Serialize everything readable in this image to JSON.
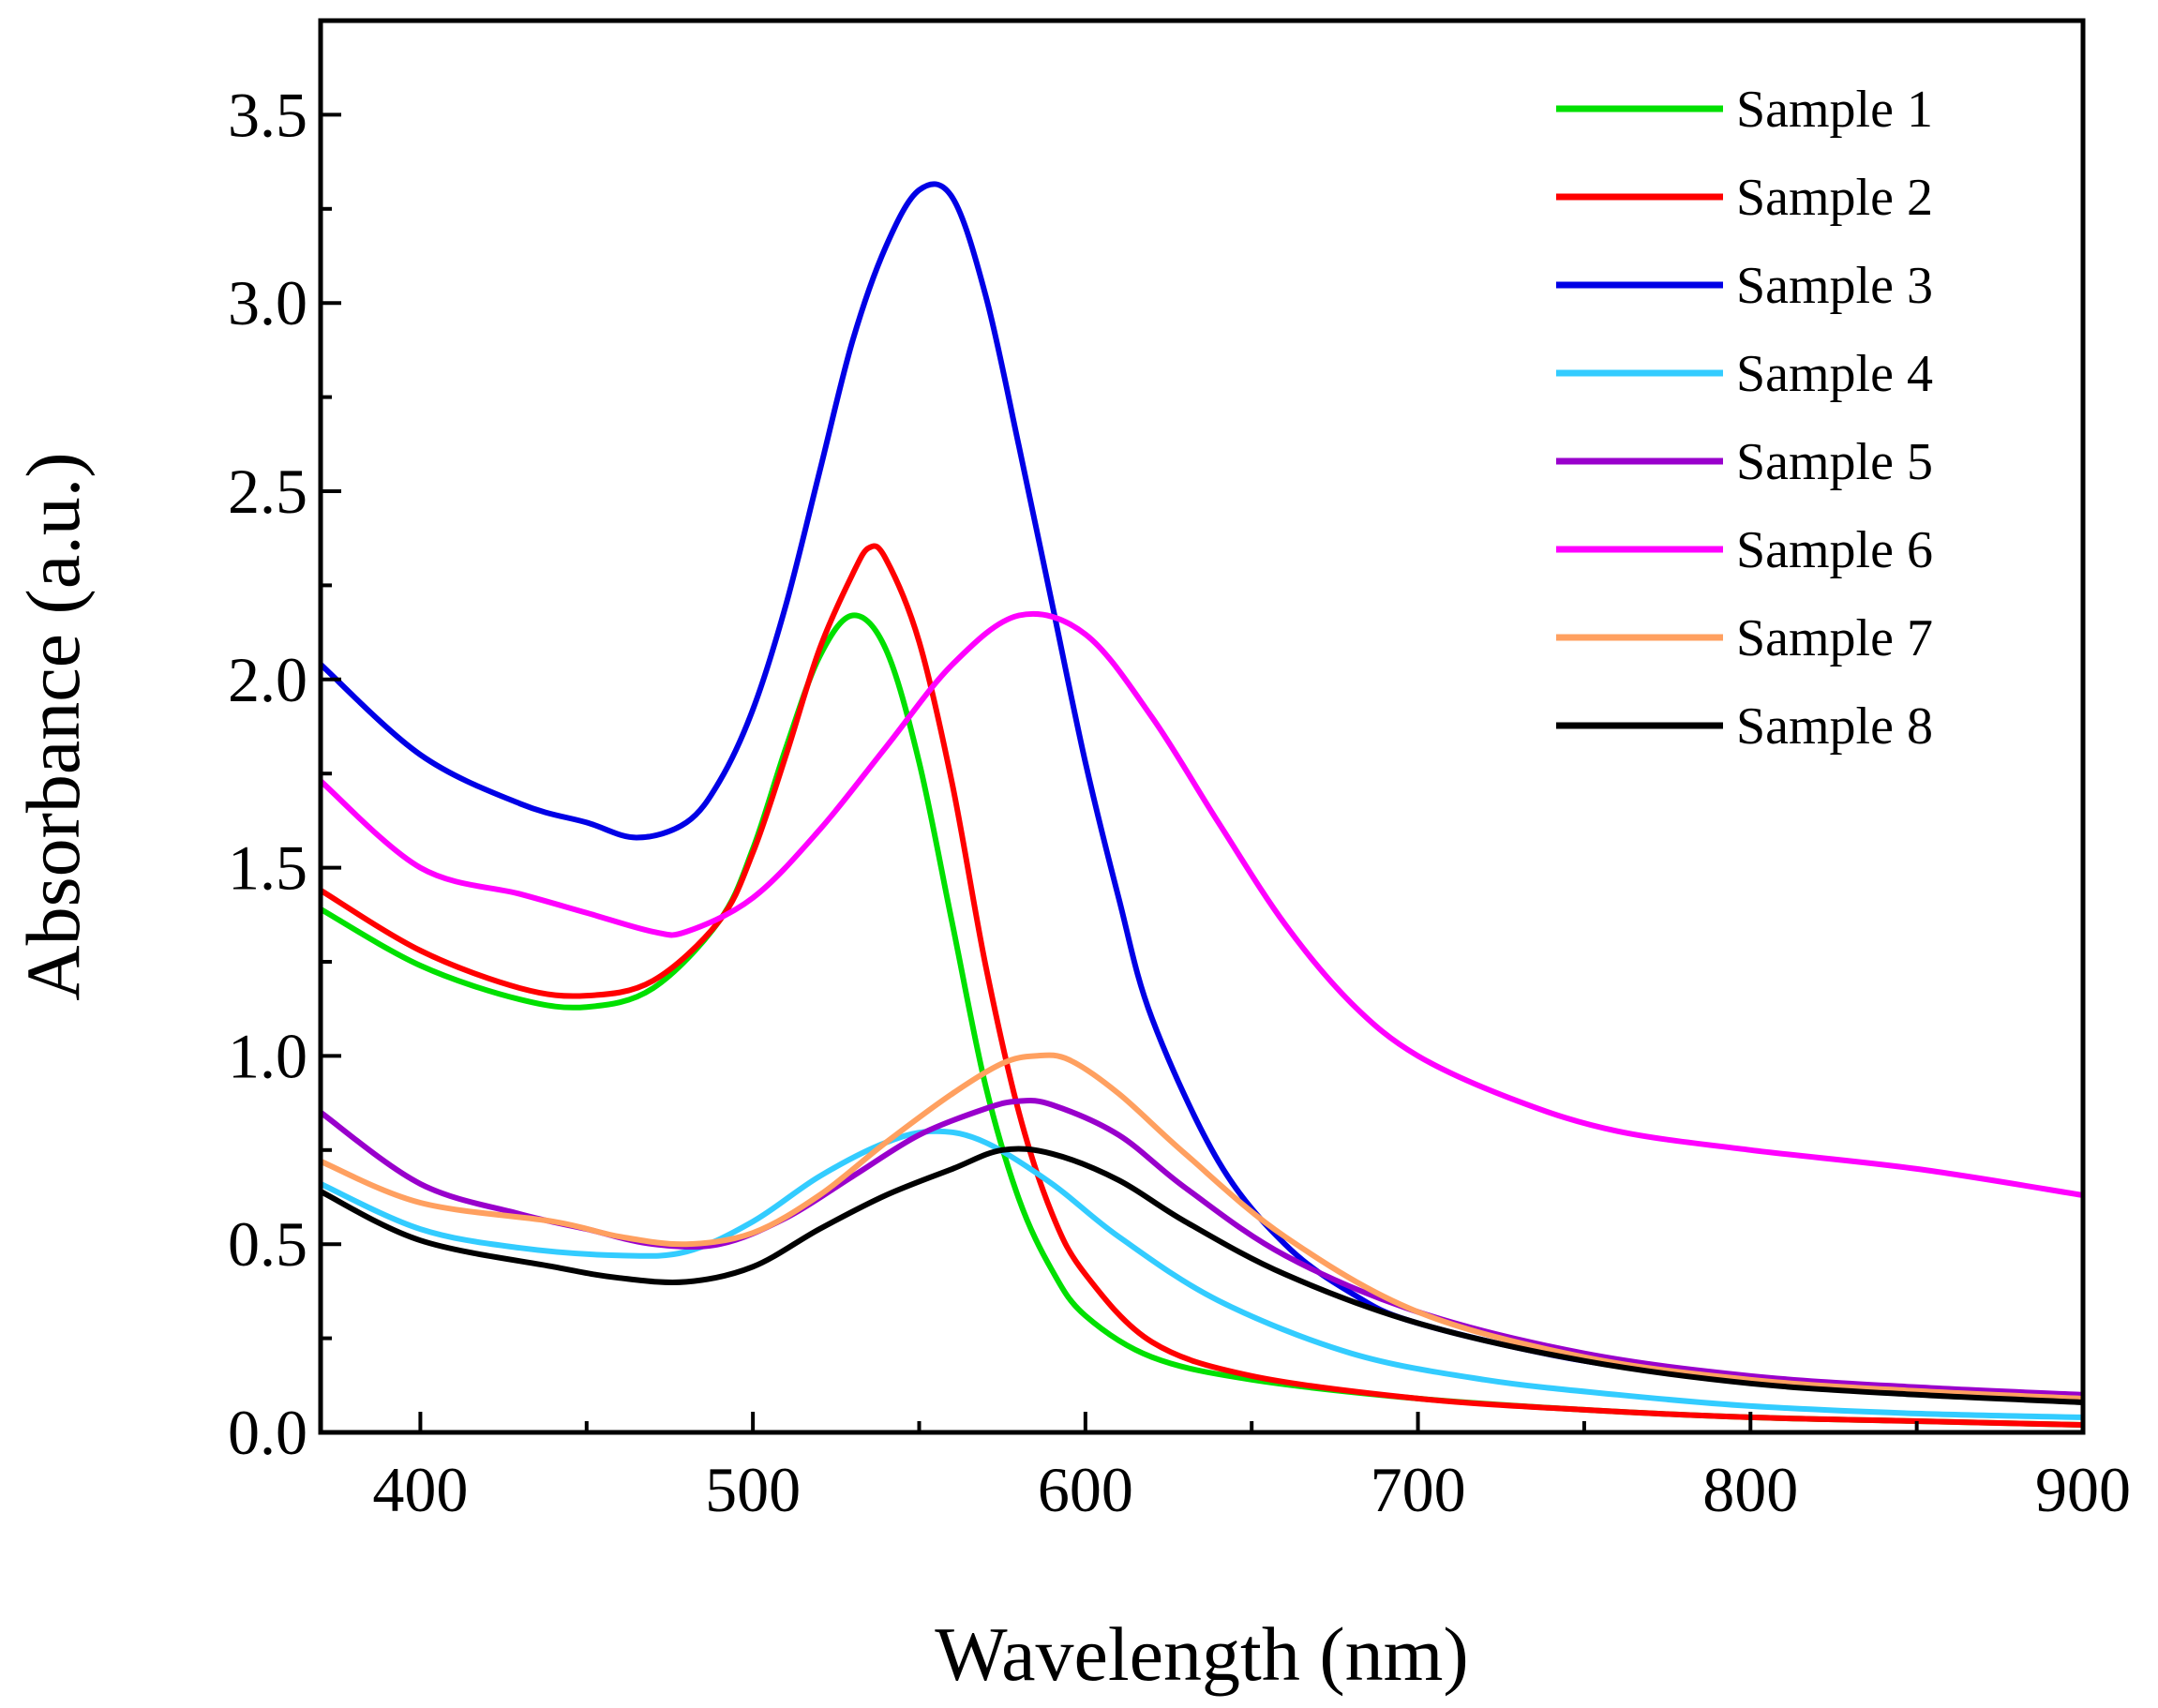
{
  "chart_data": {
    "type": "line",
    "title": "",
    "xlabel": "Wavelength (nm)",
    "ylabel": "Absorbance (a.u.)",
    "xlim": [
      370,
      900
    ],
    "ylim": [
      0,
      3.75
    ],
    "xticks": [
      400,
      500,
      600,
      700,
      800,
      900
    ],
    "xtick_labels": [
      "400",
      "500",
      "600",
      "700",
      "800",
      "900"
    ],
    "yticks": [
      0,
      0.5,
      1.0,
      1.5,
      2.0,
      2.5,
      3.0,
      3.5
    ],
    "ytick_labels": [
      "0.0",
      "0.5",
      "1.0",
      "1.5",
      "2.0",
      "2.5",
      "3.0",
      "3.5"
    ],
    "grid": false,
    "legend_position": "top-right",
    "series": [
      {
        "name": "Sample 1",
        "color": "#00e000",
        "x": [
          370,
          400,
          430,
          450,
          470,
          490,
          500,
          510,
          520,
          530,
          540,
          550,
          560,
          570,
          580,
          590,
          600,
          620,
          650,
          700,
          750,
          800,
          850,
          900
        ],
        "y": [
          1.39,
          1.24,
          1.15,
          1.13,
          1.18,
          1.36,
          1.55,
          1.82,
          2.06,
          2.17,
          2.08,
          1.78,
          1.35,
          0.92,
          0.62,
          0.43,
          0.31,
          0.2,
          0.14,
          0.09,
          0.06,
          0.04,
          0.03,
          0.02
        ]
      },
      {
        "name": "Sample 2",
        "color": "#ff0000",
        "x": [
          370,
          400,
          430,
          450,
          470,
          490,
          500,
          510,
          520,
          530,
          535,
          540,
          550,
          560,
          570,
          580,
          590,
          600,
          620,
          650,
          700,
          750,
          800,
          850,
          900
        ],
        "y": [
          1.44,
          1.28,
          1.18,
          1.16,
          1.2,
          1.36,
          1.54,
          1.8,
          2.08,
          2.28,
          2.35,
          2.32,
          2.1,
          1.72,
          1.24,
          0.85,
          0.58,
          0.42,
          0.24,
          0.15,
          0.09,
          0.06,
          0.04,
          0.03,
          0.02
        ]
      },
      {
        "name": "Sample 3",
        "color": "#0000e6",
        "x": [
          370,
          400,
          430,
          450,
          465,
          480,
          490,
          500,
          510,
          520,
          530,
          540,
          550,
          560,
          570,
          580,
          590,
          600,
          610,
          620,
          640,
          660,
          680,
          700,
          750,
          800,
          850,
          900
        ],
        "y": [
          2.04,
          1.8,
          1.67,
          1.62,
          1.58,
          1.62,
          1.73,
          1.92,
          2.2,
          2.55,
          2.9,
          3.15,
          3.3,
          3.28,
          3.02,
          2.62,
          2.2,
          1.78,
          1.42,
          1.1,
          0.72,
          0.5,
          0.37,
          0.29,
          0.19,
          0.14,
          0.11,
          0.09
        ]
      },
      {
        "name": "Sample 4",
        "color": "#33ccff",
        "x": [
          370,
          400,
          430,
          460,
          480,
          500,
          520,
          540,
          555,
          570,
          590,
          610,
          640,
          680,
          720,
          760,
          800,
          850,
          900
        ],
        "y": [
          0.66,
          0.54,
          0.49,
          0.47,
          0.48,
          0.56,
          0.68,
          0.77,
          0.8,
          0.77,
          0.66,
          0.52,
          0.35,
          0.21,
          0.14,
          0.1,
          0.07,
          0.05,
          0.04
        ]
      },
      {
        "name": "Sample 5",
        "color": "#9900cc",
        "x": [
          370,
          400,
          430,
          450,
          470,
          490,
          510,
          530,
          550,
          570,
          580,
          590,
          610,
          630,
          660,
          700,
          750,
          800,
          850,
          900
        ],
        "y": [
          0.85,
          0.66,
          0.58,
          0.54,
          0.5,
          0.5,
          0.57,
          0.68,
          0.79,
          0.86,
          0.88,
          0.87,
          0.79,
          0.65,
          0.47,
          0.32,
          0.21,
          0.15,
          0.12,
          0.1
        ]
      },
      {
        "name": "Sample 6",
        "color": "#ff00ff",
        "x": [
          370,
          400,
          430,
          450,
          470,
          480,
          500,
          520,
          540,
          560,
          580,
          600,
          620,
          640,
          660,
          680,
          700,
          730,
          760,
          800,
          850,
          900
        ],
        "y": [
          1.73,
          1.5,
          1.43,
          1.38,
          1.33,
          1.33,
          1.42,
          1.6,
          1.82,
          2.04,
          2.17,
          2.12,
          1.9,
          1.62,
          1.35,
          1.14,
          1.0,
          0.88,
          0.8,
          0.75,
          0.7,
          0.63
        ]
      },
      {
        "name": "Sample 7",
        "color": "#ffa060",
        "x": [
          370,
          400,
          440,
          460,
          480,
          500,
          520,
          540,
          560,
          575,
          585,
          595,
          610,
          630,
          660,
          700,
          750,
          800,
          850,
          900
        ],
        "y": [
          0.72,
          0.61,
          0.56,
          0.52,
          0.5,
          0.53,
          0.63,
          0.77,
          0.9,
          0.98,
          1.0,
          0.99,
          0.9,
          0.74,
          0.52,
          0.32,
          0.2,
          0.14,
          0.11,
          0.09
        ]
      },
      {
        "name": "Sample 8",
        "color": "#000000",
        "x": [
          370,
          400,
          440,
          460,
          480,
          500,
          520,
          540,
          560,
          575,
          590,
          610,
          630,
          660,
          700,
          750,
          800,
          850,
          900
        ],
        "y": [
          0.64,
          0.51,
          0.44,
          0.41,
          0.4,
          0.44,
          0.54,
          0.63,
          0.7,
          0.75,
          0.74,
          0.67,
          0.56,
          0.42,
          0.29,
          0.19,
          0.13,
          0.1,
          0.08
        ]
      }
    ]
  }
}
